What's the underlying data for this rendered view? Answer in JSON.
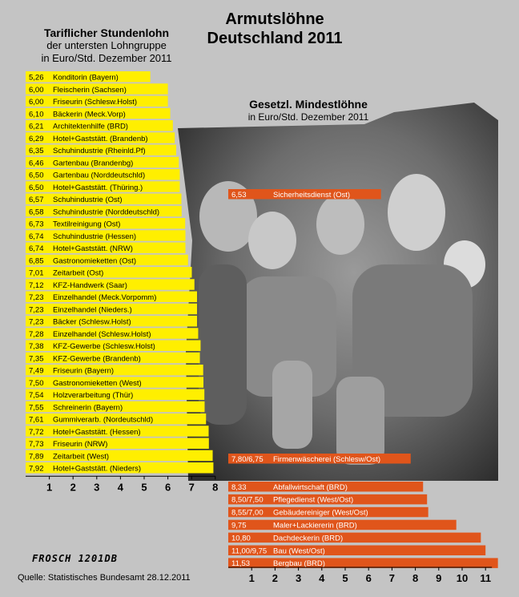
{
  "title_line1": "Armutslöhne",
  "title_line2": "Deutschland 2011",
  "left_heading_line1": "Tariflicher Stundenlohn",
  "left_heading_line2": "der untersten Lohngruppe",
  "left_heading_line3": "in Euro/Std. Dezember 2011",
  "right_heading_line1": "Gesetzl. Mindestlöhne",
  "right_heading_line2": "in Euro/Std. Dezember 2011",
  "signature": "FROSCH 1201DB",
  "source": "Quelle: Statistisches Bundesamt 28.12.2011",
  "colors": {
    "left_bars": "#ffef00",
    "right_bars": "#e0551b",
    "right_bar_text": "#ffffff",
    "background": "#c4c4c4"
  },
  "chart_data": [
    {
      "type": "bar",
      "orientation": "horizontal",
      "xlim": [
        0,
        8
      ],
      "ticks": [
        "1",
        "2",
        "3",
        "4",
        "5",
        "6",
        "7",
        "8"
      ],
      "bars": [
        {
          "label": "5,26",
          "name": "Konditorin (Bayern)",
          "value": 5.26
        },
        {
          "label": "6,00",
          "name": "Fleischerin (Sachsen)",
          "value": 6.0
        },
        {
          "label": "6,00",
          "name": "Friseurin (Schlesw.Holst)",
          "value": 6.0
        },
        {
          "label": "6,10",
          "name": "Bäckerin (Meck.Vorp)",
          "value": 6.1
        },
        {
          "label": "6,21",
          "name": "Architektenhilfe (BRD)",
          "value": 6.21
        },
        {
          "label": "6,29",
          "name": "Hotel+Gaststätt. (Brandenb)",
          "value": 6.29
        },
        {
          "label": "6,35",
          "name": "Schuhindustrie (Rheinld.Pf)",
          "value": 6.35
        },
        {
          "label": "6,46",
          "name": "Gartenbau (Brandenbg)",
          "value": 6.46
        },
        {
          "label": "6,50",
          "name": "Gartenbau (Norddeutschld)",
          "value": 6.5
        },
        {
          "label": "6,50",
          "name": "Hotel+Gaststätt. (Thüring.)",
          "value": 6.5
        },
        {
          "label": "6,57",
          "name": "Schuhindustrie (Ost)",
          "value": 6.57
        },
        {
          "label": "6,58",
          "name": "Schuhindustrie (Norddeutschld)",
          "value": 6.58
        },
        {
          "label": "6,73",
          "name": "Textilreinigung (Ost)",
          "value": 6.73
        },
        {
          "label": "6,74",
          "name": "Schuhindustrie (Hessen)",
          "value": 6.74
        },
        {
          "label": "6,74",
          "name": "Hotel+Gaststätt. (NRW)",
          "value": 6.74
        },
        {
          "label": "6,85",
          "name": "Gastronomieketten (Ost)",
          "value": 6.85
        },
        {
          "label": "7,01",
          "name": "Zeitarbeit (Ost)",
          "value": 7.01
        },
        {
          "label": "7,12",
          "name": "KFZ-Handwerk (Saar)",
          "value": 7.12
        },
        {
          "label": "7,23",
          "name": "Einzelhandel (Meck.Vorpomm)",
          "value": 7.23
        },
        {
          "label": "7,23",
          "name": "Einzelhandel (Nieders.)",
          "value": 7.23
        },
        {
          "label": "7,23",
          "name": "Bäcker (Schlesw.Holst)",
          "value": 7.23
        },
        {
          "label": "7,28",
          "name": "Einzelhandel (Schlesw.Holst)",
          "value": 7.28
        },
        {
          "label": "7,38",
          "name": "KFZ-Gewerbe (Schlesw.Holst)",
          "value": 7.38
        },
        {
          "label": "7,35",
          "name": "KFZ-Gewerbe (Brandenb)",
          "value": 7.35
        },
        {
          "label": "7,49",
          "name": "Friseurin (Bayern)",
          "value": 7.49
        },
        {
          "label": "7,50",
          "name": "Gastronomieketten (West)",
          "value": 7.5
        },
        {
          "label": "7,54",
          "name": "Holzverarbeitung (Thür)",
          "value": 7.54
        },
        {
          "label": "7,55",
          "name": "Schreinerin (Bayern)",
          "value": 7.55
        },
        {
          "label": "7,61",
          "name": "Gummiverarb. (Nordeutschld)",
          "value": 7.61
        },
        {
          "label": "7,72",
          "name": "Hotel+Gaststätt. (Hessen)",
          "value": 7.72
        },
        {
          "label": "7,73",
          "name": "Friseurin (NRW)",
          "value": 7.73
        },
        {
          "label": "7,89",
          "name": "Zeitarbeit (West)",
          "value": 7.89
        },
        {
          "label": "7,92",
          "name": "Hotel+Gaststätt. (Nieders)",
          "value": 7.92
        }
      ]
    },
    {
      "type": "bar",
      "orientation": "horizontal",
      "xlim": [
        0,
        11
      ],
      "ticks": [
        "1",
        "2",
        "3",
        "4",
        "5",
        "6",
        "7",
        "8",
        "9",
        "10",
        "11"
      ],
      "bars": [
        {
          "label": "6,53",
          "name": "Sicherheitsdienst (Ost)",
          "value": 6.53
        },
        {
          "label": "7,80/6,75",
          "name": "Firmenwäscherei (Schlesw/Ost)",
          "value": 7.8
        },
        {
          "label": "8,33",
          "name": "Abfallwirtschaft (BRD)",
          "value": 8.33
        },
        {
          "label": "8,50/7,50",
          "name": "Pflegedienst (West/Ost)",
          "value": 8.5
        },
        {
          "label": "8,55/7,00",
          "name": "Gebäudereiniger (West/Ost)",
          "value": 8.55
        },
        {
          "label": "9,75",
          "name": "Maler+Lackiererin (BRD)",
          "value": 9.75
        },
        {
          "label": "10,80",
          "name": "Dachdeckerin (BRD)",
          "value": 10.8
        },
        {
          "label": "11,00/9,75",
          "name": "Bau (West/Ost)",
          "value": 11.0
        },
        {
          "label": "11,53",
          "name": "Bergbau (BRD)",
          "value": 11.53
        }
      ]
    }
  ]
}
